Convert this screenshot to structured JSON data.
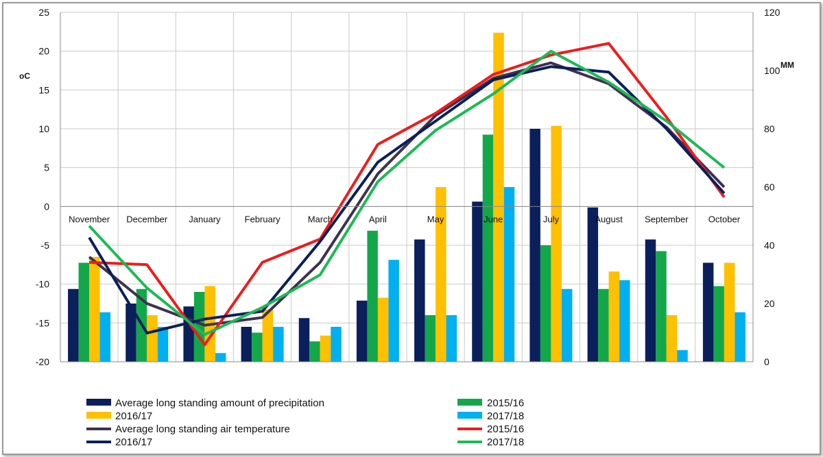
{
  "chart_data": {
    "type": "bar",
    "categories": [
      "November",
      "December",
      "January",
      "February",
      "March",
      "April",
      "May",
      "June",
      "July",
      "August",
      "September",
      "October"
    ],
    "left_axis": {
      "label": "oC",
      "range": [
        -20,
        25
      ],
      "ticks": [
        25,
        20,
        15,
        10,
        5,
        0,
        -5,
        -10,
        -15,
        -20
      ]
    },
    "right_axis": {
      "label": "MM",
      "range": [
        0,
        120
      ],
      "ticks": [
        120,
        100,
        80,
        60,
        40,
        20,
        0
      ]
    },
    "bar_series": [
      {
        "name": "Average long standing amount of precipitation",
        "color": "#0b1f5c",
        "values": [
          25,
          20,
          19,
          12,
          15,
          21,
          42,
          55,
          80,
          53,
          42,
          34
        ]
      },
      {
        "name": "2015/16",
        "color": "#12a84a",
        "values": [
          34,
          25,
          24,
          10,
          7,
          45,
          16,
          78,
          40,
          25,
          38,
          26
        ]
      },
      {
        "name": "2016/17",
        "color": "#ffc000",
        "values": [
          36,
          16,
          26,
          18,
          9,
          22,
          60,
          113,
          81,
          31,
          16,
          34
        ]
      },
      {
        "name": "2017/18",
        "color": "#00b0f0",
        "values": [
          17,
          12,
          3,
          12,
          12,
          35,
          16,
          60,
          25,
          28,
          4,
          17
        ]
      }
    ],
    "line_series": [
      {
        "name": "Average long standing air temperature",
        "color": "#3f3050",
        "values": [
          -6.5,
          -12.5,
          -15.3,
          -14.3,
          -7.2,
          4.2,
          11.7,
          16.5,
          18.5,
          15.8,
          10.2,
          2.5
        ]
      },
      {
        "name": "2015/16",
        "color": "#ee1c1c",
        "values": [
          -7.2,
          -7.5,
          -17.8,
          -7.2,
          -4.2,
          8.0,
          12.0,
          17.0,
          19.5,
          21.0,
          11.5,
          1.2
        ]
      },
      {
        "name": "2016/17",
        "color": "#0b1f5c",
        "values": [
          -4.0,
          -16.3,
          -14.5,
          -13.5,
          -4.5,
          5.7,
          11.0,
          16.3,
          18.0,
          17.3,
          10.0,
          1.7
        ]
      },
      {
        "name": "2017/18",
        "color": "#1db954",
        "values": [
          -2.5,
          -10.5,
          -16.5,
          -13.0,
          -8.8,
          3.2,
          9.8,
          14.5,
          20.0,
          16.0,
          11.0,
          5.0
        ]
      }
    ],
    "legend": [
      "Average long standing amount of precipitation",
      "2015/16",
      "2016/17",
      "2017/18",
      "Average long standing air temperature",
      "2015/16",
      "2016/17",
      "2017/18"
    ],
    "grid": true,
    "legend_position": "bottom"
  }
}
